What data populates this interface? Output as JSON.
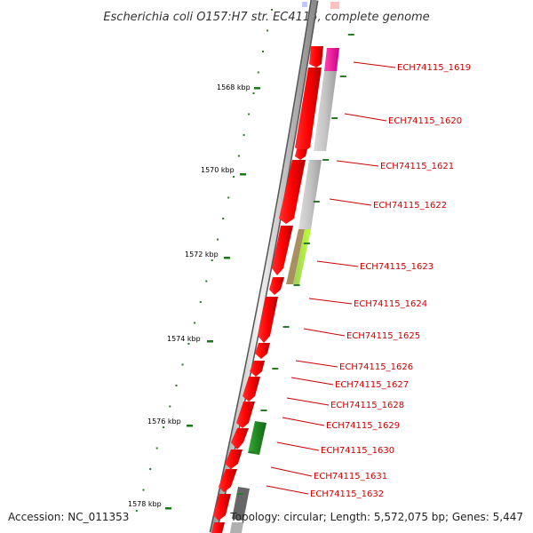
{
  "title": "Escherichia coli O157:H7 str. EC4115, complete genome",
  "footer": {
    "accession": "Accession: NC_011353",
    "topology": "Topology: circular; Length: 5,572,075 bp; Genes: 5,447"
  },
  "kbp_ticks": [
    "1568 kbp",
    "1570 kbp",
    "1572 kbp",
    "1574 kbp",
    "1576 kbp",
    "1578 kbp"
  ],
  "genes": [
    "ECH74115_1619",
    "ECH74115_1620",
    "ECH74115_1621",
    "ECH74115_1622",
    "ECH74115_1623",
    "ECH74115_1624",
    "ECH74115_1625",
    "ECH74115_1626",
    "ECH74115_1627",
    "ECH74115_1628",
    "ECH74115_1629",
    "ECH74115_1630",
    "ECH74115_1631",
    "ECH74115_1632"
  ],
  "colors": {
    "gene_forward": "#ee0000",
    "label": "#cc0000",
    "tick": "#1a7a1a",
    "backbone": "#888888"
  }
}
